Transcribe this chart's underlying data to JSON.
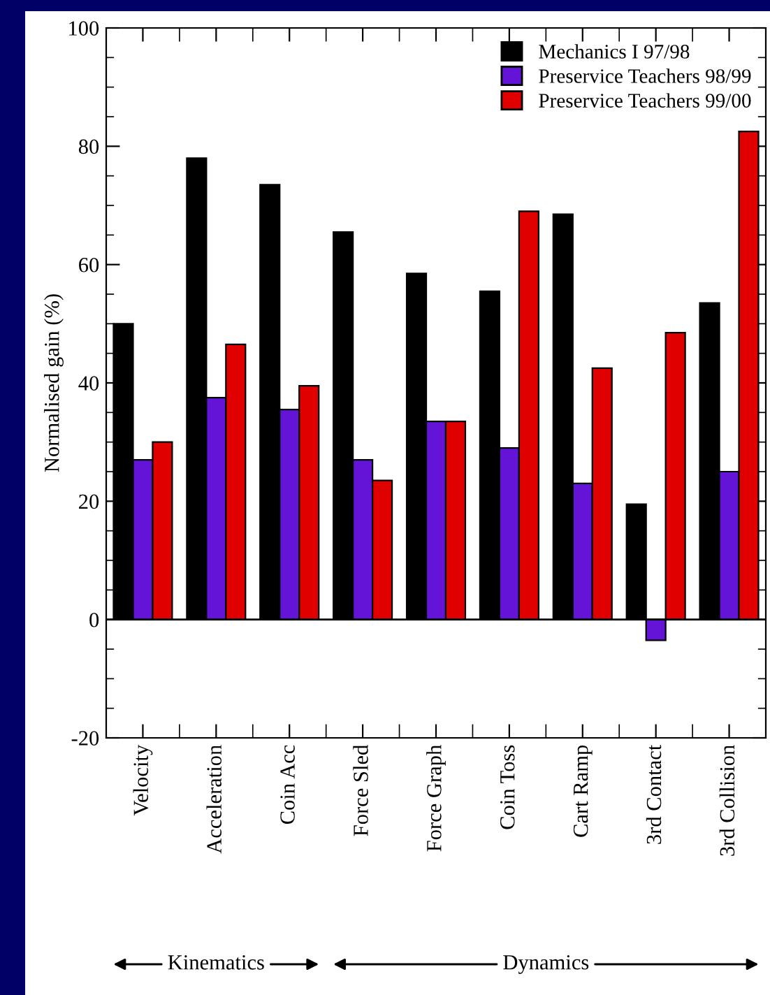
{
  "chart_data": {
    "type": "bar",
    "ylabel": "Normalised gain (%)",
    "categories": [
      "Velocity",
      "Acceleration",
      "Coin Acc",
      "Force Sled",
      "Force Graph",
      "Coin Toss",
      "Cart Ramp",
      "3rd Contact",
      "3rd Collision"
    ],
    "series": [
      {
        "name": "Mechanics I 97/98",
        "color": "#000000",
        "values": [
          50,
          78,
          73.5,
          65.5,
          58.5,
          55.5,
          68.5,
          19.5,
          53.5
        ]
      },
      {
        "name": "Preservice Teachers 98/99",
        "color": "#6314d6",
        "values": [
          27,
          37.5,
          35.5,
          27,
          33.5,
          29,
          23,
          -3.5,
          25
        ]
      },
      {
        "name": "Preservice Teachers 99/00",
        "color": "#e00000",
        "values": [
          30,
          46.5,
          39.5,
          23.5,
          33.5,
          69,
          42.5,
          48.5,
          82.5
        ]
      }
    ],
    "ylim": [
      -20,
      100
    ],
    "yticks": [
      -20,
      0,
      20,
      40,
      60,
      80,
      100
    ],
    "legend": "top right",
    "grid": false,
    "ref_lines": [
      {
        "axis": "y",
        "value": 0,
        "color": "#000000"
      }
    ],
    "annotations": [
      "Kinematics",
      "Dynamics"
    ]
  }
}
